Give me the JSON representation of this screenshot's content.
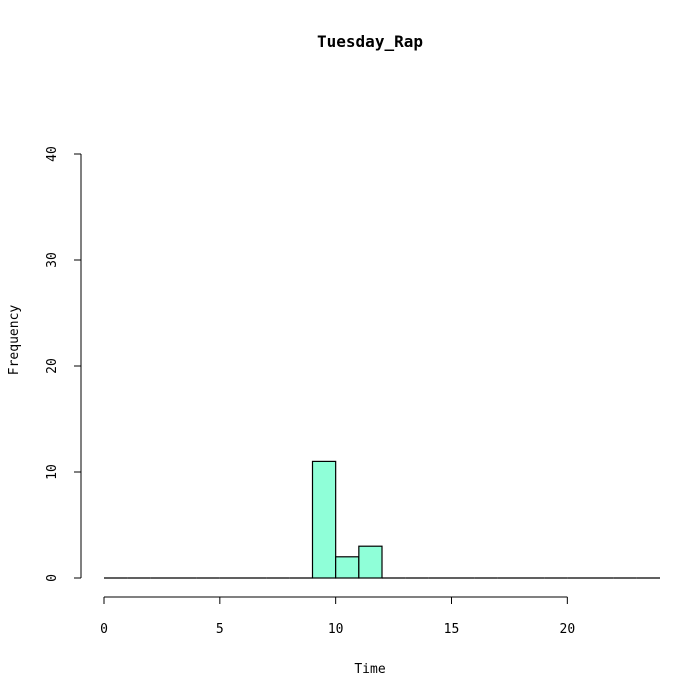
{
  "chart_data": {
    "type": "bar",
    "title": "Tuesday_Rap",
    "xlabel": "Time",
    "ylabel": "Frequency",
    "xlim": [
      0,
      24
    ],
    "ylim": [
      0,
      40
    ],
    "x_ticks": [
      "0",
      "5",
      "10",
      "15",
      "20"
    ],
    "y_ticks": [
      "0",
      "10",
      "20",
      "30",
      "40"
    ],
    "bins": [
      {
        "start": 0,
        "end": 1,
        "value": 0
      },
      {
        "start": 1,
        "end": 2,
        "value": 0
      },
      {
        "start": 2,
        "end": 3,
        "value": 0
      },
      {
        "start": 3,
        "end": 4,
        "value": 0
      },
      {
        "start": 4,
        "end": 5,
        "value": 0
      },
      {
        "start": 5,
        "end": 6,
        "value": 0
      },
      {
        "start": 6,
        "end": 7,
        "value": 0
      },
      {
        "start": 7,
        "end": 8,
        "value": 0
      },
      {
        "start": 8,
        "end": 9,
        "value": 0
      },
      {
        "start": 9,
        "end": 10,
        "value": 11
      },
      {
        "start": 10,
        "end": 11,
        "value": 2
      },
      {
        "start": 11,
        "end": 12,
        "value": 3
      },
      {
        "start": 12,
        "end": 13,
        "value": 0
      },
      {
        "start": 13,
        "end": 14,
        "value": 0
      },
      {
        "start": 14,
        "end": 15,
        "value": 0
      },
      {
        "start": 15,
        "end": 16,
        "value": 0
      },
      {
        "start": 16,
        "end": 17,
        "value": 0
      },
      {
        "start": 17,
        "end": 18,
        "value": 0
      },
      {
        "start": 18,
        "end": 19,
        "value": 0
      },
      {
        "start": 19,
        "end": 20,
        "value": 0
      },
      {
        "start": 20,
        "end": 21,
        "value": 0
      },
      {
        "start": 21,
        "end": 22,
        "value": 0
      },
      {
        "start": 22,
        "end": 23,
        "value": 0
      },
      {
        "start": 23,
        "end": 24,
        "value": 0
      }
    ],
    "bar_color": "#8FFFD8",
    "grid": false
  }
}
